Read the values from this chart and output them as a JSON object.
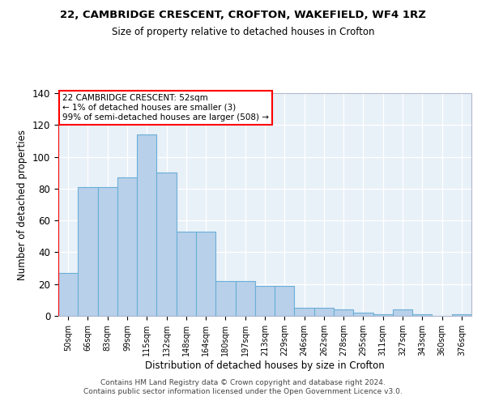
{
  "title1": "22, CAMBRIDGE CRESCENT, CROFTON, WAKEFIELD, WF4 1RZ",
  "title2": "Size of property relative to detached houses in Crofton",
  "xlabel": "Distribution of detached houses by size in Crofton",
  "ylabel": "Number of detached properties",
  "bar_values": [
    27,
    81,
    81,
    87,
    114,
    90,
    53,
    53,
    22,
    22,
    19,
    19,
    5,
    5,
    4,
    2,
    1,
    4,
    1,
    0,
    1
  ],
  "bar_labels": [
    "50sqm",
    "66sqm",
    "83sqm",
    "99sqm",
    "115sqm",
    "132sqm",
    "148sqm",
    "164sqm",
    "180sqm",
    "197sqm",
    "213sqm",
    "229sqm",
    "246sqm",
    "262sqm",
    "278sqm",
    "295sqm",
    "311sqm",
    "327sqm",
    "343sqm",
    "360sqm",
    "376sqm"
  ],
  "bar_color": "#b8d0ea",
  "bar_edge_color": "#6aaed6",
  "bg_color": "#e8f0f8",
  "grid_color": "#ffffff",
  "annotation_line1": "22 CAMBRIDGE CRESCENT: 52sqm",
  "annotation_line2": "← 1% of detached houses are smaller (3)",
  "annotation_line3": "99% of semi-detached houses are larger (508) →",
  "ylim": [
    0,
    140
  ],
  "yticks": [
    0,
    20,
    40,
    60,
    80,
    100,
    120,
    140
  ],
  "footer1": "Contains HM Land Registry data © Crown copyright and database right 2024.",
  "footer2": "Contains public sector information licensed under the Open Government Licence v3.0."
}
